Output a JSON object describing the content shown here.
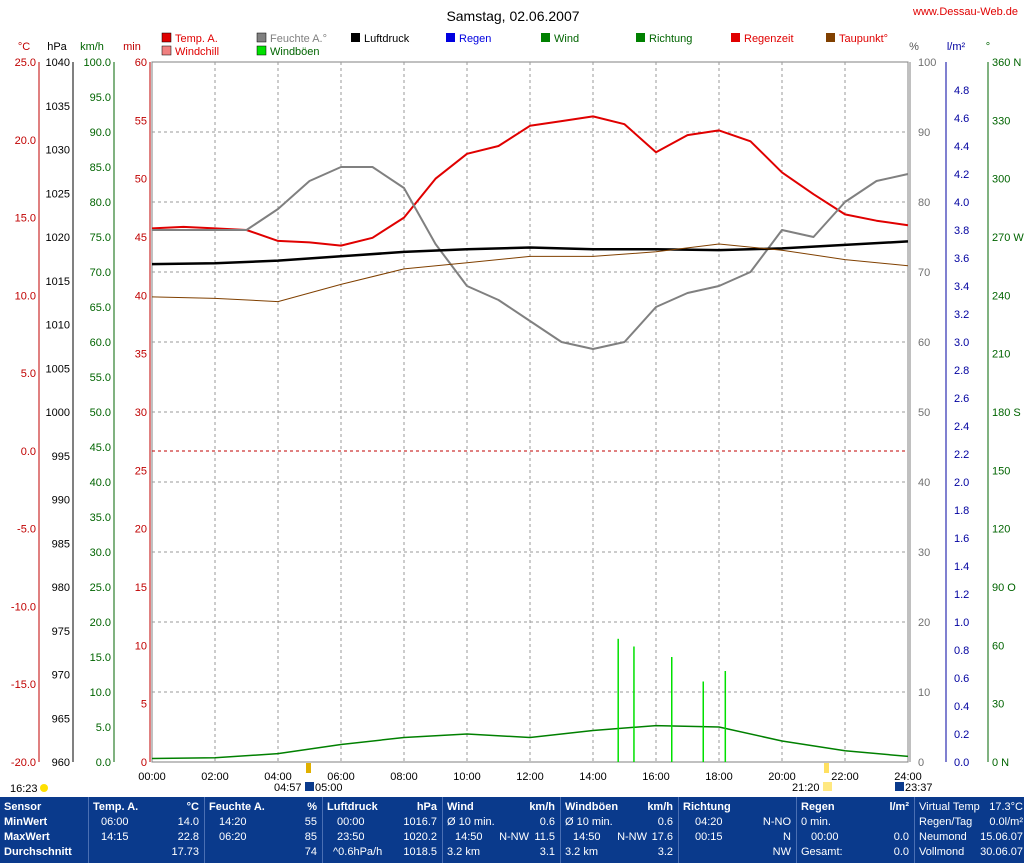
{
  "header": {
    "title": "Samstag, 02.06.2007",
    "site": "www.Dessau-Web.de"
  },
  "legend": [
    {
      "label": "Temp. A.",
      "color": "#e00000"
    },
    {
      "label": "Windchill",
      "color": "#f08080"
    },
    {
      "label": "Feuchte A.°",
      "color": "#808080"
    },
    {
      "label": "Windböen",
      "color": "#00e000"
    },
    {
      "label": "Luftdruck",
      "color": "#000000"
    },
    {
      "label": "Regen",
      "color": "#0000e0"
    },
    {
      "label": "Wind",
      "color": "#008000"
    },
    {
      "label": "Richtung",
      "color": "#008000"
    },
    {
      "label": "Regenzeit",
      "color": "#e00000"
    },
    {
      "label": "Taupunkt°",
      "color": "#804000"
    }
  ],
  "units": {
    "temp": "°C",
    "press": "hPa",
    "wind": "km/h",
    "min": "min",
    "hum": "%",
    "rain": "l/m²",
    "dir": "°"
  },
  "chart_data": {
    "type": "line",
    "title": "Samstag, 02.06.2007",
    "x_range": [
      "00:00",
      "24:00"
    ],
    "x_ticks": [
      "00:00",
      "02:00",
      "04:00",
      "06:00",
      "08:00",
      "10:00",
      "12:00",
      "14:00",
      "16:00",
      "18:00",
      "20:00",
      "22:00",
      "24:00"
    ],
    "axes": {
      "temp_c": {
        "range": [
          -20,
          25
        ],
        "ticks": [
          "25.0",
          "20.0",
          "15.0",
          "10.0",
          "5.0",
          "0.0",
          "-5.0",
          "-10.0",
          "-15.0",
          "-20.0"
        ]
      },
      "pressure_hpa": {
        "range": [
          960,
          1040
        ],
        "ticks": [
          "1040",
          "1035",
          "1030",
          "1025",
          "1020",
          "1015",
          "1010",
          "1005",
          "1000",
          "995",
          "990",
          "985",
          "980",
          "975",
          "970",
          "965",
          "960"
        ]
      },
      "wind_kmh": {
        "range": [
          0,
          100
        ],
        "ticks": [
          "100.0",
          "95.0",
          "90.0",
          "85.0",
          "80.0",
          "75.0",
          "70.0",
          "65.0",
          "60.0",
          "55.0",
          "50.0",
          "45.0",
          "40.0",
          "35.0",
          "30.0",
          "25.0",
          "20.0",
          "15.0",
          "10.0",
          "5.0",
          "0.0"
        ]
      },
      "rain_time_min": {
        "range": [
          0,
          60
        ],
        "ticks": [
          "60",
          "55",
          "50",
          "45",
          "40",
          "35",
          "30",
          "25",
          "20",
          "15",
          "10",
          "5",
          "0"
        ]
      },
      "humidity_pct": {
        "range": [
          0,
          100
        ],
        "ticks": [
          "100",
          "90",
          "80",
          "70",
          "60",
          "50",
          "40",
          "30",
          "20",
          "10",
          "0"
        ]
      },
      "rain_lm2": {
        "range": [
          0,
          5
        ],
        "ticks": [
          "4.8",
          "4.6",
          "4.4",
          "4.2",
          "4.0",
          "3.8",
          "3.6",
          "3.4",
          "3.2",
          "3.0",
          "2.8",
          "2.6",
          "2.4",
          "2.2",
          "2.0",
          "1.8",
          "1.6",
          "1.4",
          "1.2",
          "1.0",
          "0.8",
          "0.6",
          "0.4",
          "0.2",
          "0.0"
        ]
      },
      "direction_deg": {
        "range": [
          0,
          360
        ],
        "ticks": [
          "360 N",
          "330",
          "300",
          "270 W",
          "240",
          "210",
          "180 S",
          "150",
          "120",
          "90 O",
          "60",
          "30",
          "0 N"
        ]
      }
    },
    "series": [
      {
        "name": "Temp. A.",
        "unit": "°C",
        "x": [
          0,
          1,
          2,
          3,
          4,
          5,
          6,
          7,
          8,
          9,
          10,
          11,
          12,
          13,
          14,
          15,
          16,
          17,
          18,
          19,
          20,
          21,
          22,
          23,
          24
        ],
        "values": [
          14.3,
          14.4,
          14.3,
          14.2,
          13.5,
          13.4,
          13.2,
          13.7,
          15.0,
          17.5,
          19.1,
          19.6,
          20.9,
          21.2,
          21.5,
          21.0,
          19.2,
          20.3,
          20.6,
          19.9,
          17.9,
          16.5,
          15.2,
          14.8,
          14.5
        ]
      },
      {
        "name": "Feuchte A.°",
        "unit": "%",
        "x": [
          0,
          1,
          2,
          3,
          4,
          5,
          6,
          7,
          8,
          9,
          10,
          11,
          12,
          13,
          14,
          15,
          16,
          17,
          18,
          19,
          20,
          21,
          22,
          23,
          24
        ],
        "values": [
          76,
          76,
          76,
          76,
          79,
          83,
          85,
          85,
          82,
          74,
          68,
          66,
          63,
          60,
          59,
          60,
          65,
          67,
          68,
          70,
          76,
          75,
          80,
          83,
          84
        ]
      },
      {
        "name": "Luftdruck",
        "unit": "hPa",
        "x": [
          0,
          2,
          4,
          6,
          8,
          10,
          12,
          14,
          16,
          18,
          20,
          22,
          24
        ],
        "values": [
          1016.9,
          1017.0,
          1017.3,
          1017.8,
          1018.3,
          1018.6,
          1018.8,
          1018.6,
          1018.6,
          1018.5,
          1018.7,
          1019.1,
          1019.5
        ]
      },
      {
        "name": "Taupunkt°",
        "unit": "°C",
        "x": [
          0,
          2,
          4,
          6,
          8,
          10,
          12,
          14,
          16,
          18,
          20,
          22,
          24
        ],
        "values": [
          9.9,
          9.8,
          9.6,
          10.7,
          11.7,
          12.1,
          12.5,
          12.5,
          12.8,
          13.3,
          12.9,
          12.3,
          11.9
        ]
      },
      {
        "name": "Wind",
        "unit": "km/h",
        "x": [
          0,
          2,
          4,
          6,
          8,
          10,
          12,
          14,
          16,
          18,
          20,
          22,
          24
        ],
        "values": [
          0.5,
          0.6,
          1.2,
          2.5,
          3.5,
          4.0,
          3.5,
          4.5,
          5.2,
          5.0,
          3.0,
          1.6,
          0.8
        ]
      },
      {
        "name": "Windböen",
        "unit": "km/h",
        "x": [
          14.8,
          15.3,
          16.5,
          17.5,
          18.2
        ],
        "values": [
          17.6,
          16.5,
          15.0,
          11.5,
          13.0
        ]
      }
    ]
  },
  "markers": {
    "sunrise": "04:57",
    "sunrise_marker": "05:00",
    "sunset": "21:20",
    "moon_rise": "16:23",
    "moon_set": "23:37"
  },
  "stats": {
    "row_labels": [
      "Sensor",
      "MinWert",
      "MaxWert",
      "Durchschnitt"
    ],
    "temp": {
      "title": "Temp. A.",
      "unit": "°C",
      "min_time": "06:00",
      "min": "14.0",
      "max_time": "14:15",
      "max": "22.8",
      "avg": "17.73"
    },
    "hum": {
      "title": "Feuchte A.",
      "unit": "%",
      "min_time": "14:20",
      "min": "55",
      "max_time": "06:20",
      "max": "85",
      "avg": "74"
    },
    "press": {
      "title": "Luftdruck",
      "unit": "hPa",
      "min_time": "00:00",
      "min": "1016.7",
      "max_time": "23:50",
      "max": "1020.2",
      "avg_label": "^0.6hPa/h",
      "avg": "1018.5"
    },
    "wind": {
      "title": "Wind",
      "unit": "km/h",
      "r1_label": "Ø 10 min.",
      "r1": "0.6",
      "r2_time": "14:50",
      "r2_dir": "N-NW",
      "r2": "11.5",
      "r3_label": "3.2 km",
      "r3": "3.1"
    },
    "gust": {
      "title": "Windböen",
      "unit": "km/h",
      "r1_label": "Ø 10 min.",
      "r1": "0.6",
      "r2_time": "14:50",
      "r2_dir": "N-NW",
      "r2": "17.6",
      "r3_label": "3.2 km",
      "r3": "3.2"
    },
    "dir": {
      "title": "Richtung",
      "r1_time": "04:20",
      "r1": "N-NO",
      "r2_time": "00:15",
      "r2": "N",
      "r3": "NW"
    },
    "rain": {
      "title": "Regen",
      "unit": "l/m²",
      "r1_label": "0 min.",
      "r2_time": "00:00",
      "r2": "0.0",
      "r3_label": "Gesamt:",
      "r3": "0.0"
    },
    "misc": {
      "vt_label": "Virtual Temp",
      "vt": "17.3°C",
      "rt_label": "Regen/Tag",
      "rt": "0.0l/m²",
      "nm_label": "Neumond",
      "nm": "15.06.07",
      "vm_label": "Vollmond",
      "vm": "30.06.07"
    }
  }
}
